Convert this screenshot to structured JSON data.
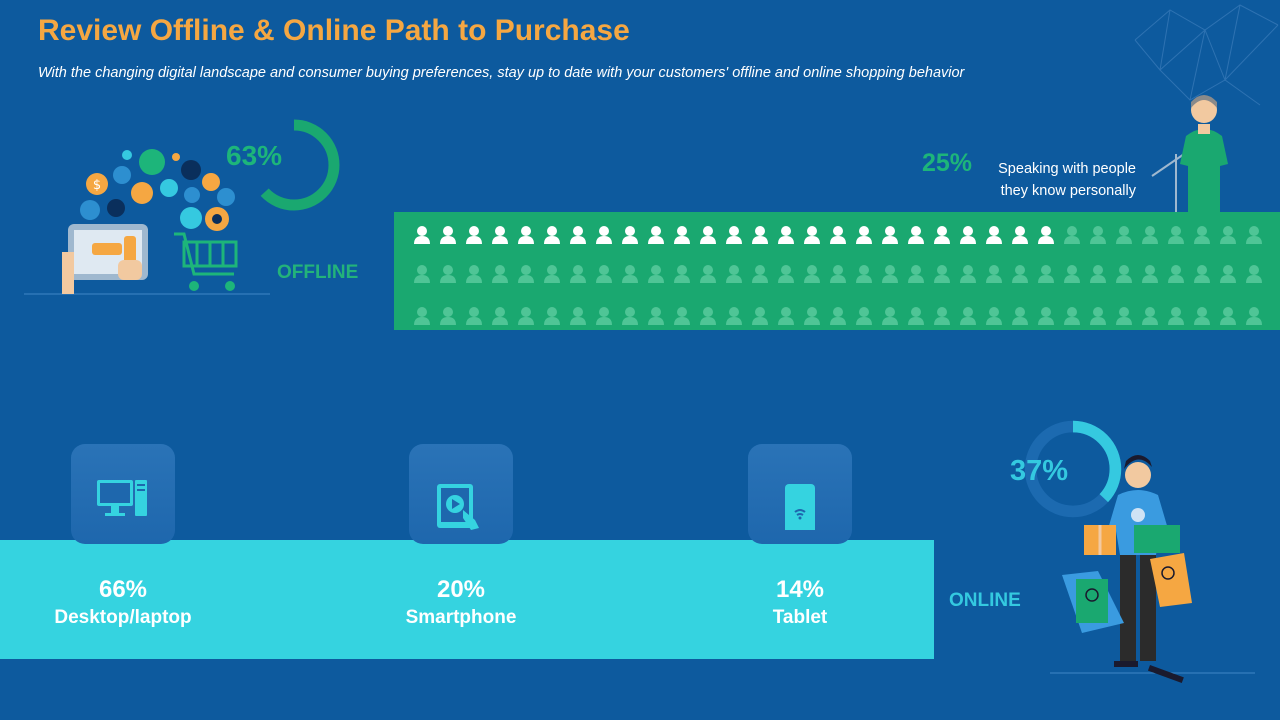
{
  "header": {
    "title": "Review Offline & Online Path to Purchase",
    "subtitle": "With the changing digital landscape and consumer buying preferences, stay up to date with  your customers' offline and online shopping behavior"
  },
  "offline": {
    "percent": "63%",
    "percent_value": 63,
    "label": "OFFLINE",
    "speaking_percent": "25%",
    "speaking_text_line1": "Speaking with people",
    "speaking_text_line2": "they know personally",
    "people_rows": 3,
    "people_per_row": 33,
    "highlighted_in_first_row": 25
  },
  "online": {
    "percent": "37%",
    "percent_value": 37,
    "label": "ONLINE",
    "devices": [
      {
        "value": "66%",
        "name": "Desktop/laptop",
        "icon": "desktop-icon"
      },
      {
        "value": "20%",
        "name": "Smartphone",
        "icon": "tablet-touch-icon"
      },
      {
        "value": "14%",
        "name": "Tablet",
        "icon": "phone-wifi-icon"
      }
    ]
  },
  "colors": {
    "background": "#0d5a9e",
    "title": "#f5a742",
    "offline_green": "#1aa870",
    "online_cyan": "#35d3e0"
  }
}
